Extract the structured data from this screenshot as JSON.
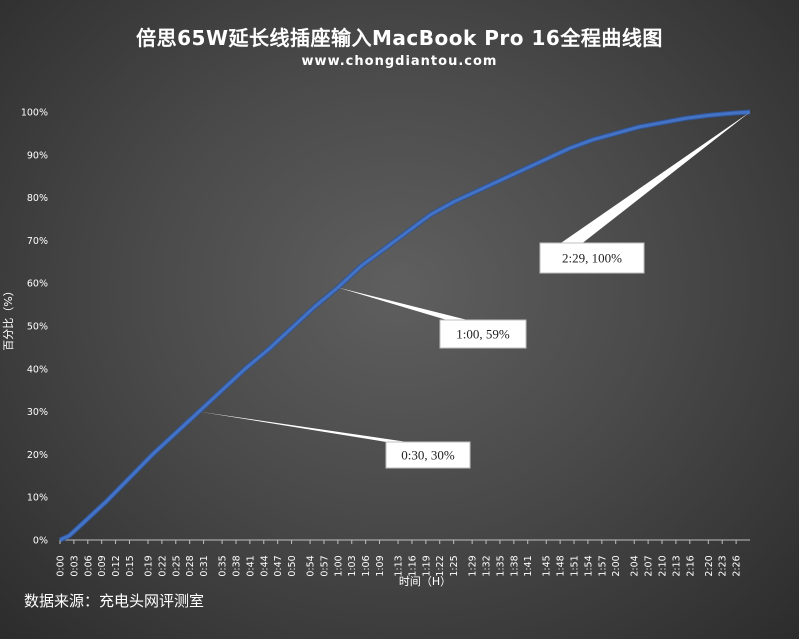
{
  "header": {
    "title": "倍思65W延长线插座输入MacBook Pro 16全程曲线图",
    "subtitle": "www.chongdiantou.com"
  },
  "footer": {
    "source": "数据来源：充电头网评测室"
  },
  "chart_data": {
    "type": "line",
    "title": "倍思65W延长线插座输入MacBook Pro 16全程曲线图",
    "xlabel": "时间（H）",
    "ylabel": "百分比（%）",
    "ylim": [
      0,
      100
    ],
    "y_ticks": [
      "0%",
      "10%",
      "20%",
      "30%",
      "40%",
      "50%",
      "60%",
      "70%",
      "80%",
      "90%",
      "100%"
    ],
    "x_ticks": [
      "0:00",
      "0:03",
      "0:06",
      "0:09",
      "0:12",
      "0:15",
      "0:19",
      "0:22",
      "0:25",
      "0:28",
      "0:31",
      "0:35",
      "0:38",
      "0:41",
      "0:44",
      "0:47",
      "0:50",
      "0:54",
      "0:57",
      "1:00",
      "1:03",
      "1:06",
      "1:09",
      "1:13",
      "1:16",
      "1:19",
      "1:22",
      "1:25",
      "1:29",
      "1:32",
      "1:35",
      "1:38",
      "1:41",
      "1:45",
      "1:48",
      "1:51",
      "1:54",
      "1:57",
      "2:00",
      "2:04",
      "2:07",
      "2:10",
      "2:13",
      "2:16",
      "2:20",
      "2:23",
      "2:26"
    ],
    "grid": false,
    "line_color": "#4472c4",
    "series": [
      {
        "x": [
          "0:00",
          "0:02",
          "0:05",
          "0:10",
          "0:15",
          "0:20",
          "0:25",
          "0:30",
          "0:35",
          "0:40",
          "0:45",
          "0:50",
          "0:55",
          "1:00",
          "1:05",
          "1:10",
          "1:15",
          "1:20",
          "1:25",
          "1:30",
          "1:35",
          "1:40",
          "1:45",
          "1:50",
          "1:55",
          "2:00",
          "2:05",
          "2:10",
          "2:15",
          "2:20",
          "2:25",
          "2:29"
        ],
        "values": [
          0,
          1,
          4,
          9,
          14.5,
          20,
          25,
          30,
          35,
          40,
          44.5,
          49.5,
          54.5,
          59,
          64,
          68,
          72,
          76,
          79,
          81.5,
          84,
          86.5,
          89,
          91.5,
          93.5,
          95,
          96.5,
          97.5,
          98.5,
          99.2,
          99.7,
          100
        ]
      }
    ],
    "annotations": [
      {
        "label": "0:30, 30%",
        "x": "0:30",
        "y": 30
      },
      {
        "label": "1:00, 59%",
        "x": "1:00",
        "y": 59
      },
      {
        "label": "2:29, 100%",
        "x": "2:29",
        "y": 100
      }
    ]
  }
}
